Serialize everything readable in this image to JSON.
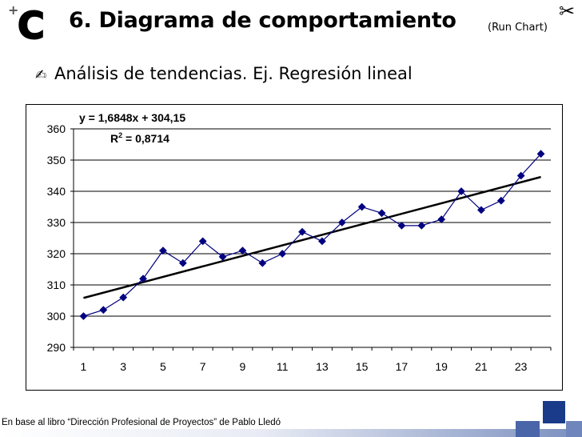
{
  "header": {
    "logo_letter": "C",
    "logo_plus": "+",
    "title": "6. Diagrama de comportamiento",
    "title_suffix": "(Run Chart)",
    "scissors_glyph": "✂"
  },
  "subtitle": {
    "bullet_glyph": "✍",
    "text": "Análisis de tendencias. Ej. Regresión lineal"
  },
  "footer": {
    "text": "En base al libro “Dirección Profesional de Proyectos” de Pablo Lledó"
  },
  "colors": {
    "series": "#000080",
    "trendline": "#000000",
    "accent": "#1a3a8a"
  },
  "chart_data": {
    "type": "line",
    "title": "",
    "xlabel": "",
    "ylabel": "",
    "x": [
      1,
      2,
      3,
      4,
      5,
      6,
      7,
      8,
      9,
      10,
      11,
      12,
      13,
      14,
      15,
      16,
      17,
      18,
      19,
      20,
      21,
      22,
      23,
      24
    ],
    "y": [
      300,
      302,
      306,
      312,
      321,
      317,
      324,
      319,
      321,
      317,
      320,
      327,
      324,
      330,
      335,
      333,
      329,
      329,
      331,
      340,
      334,
      337,
      345,
      352
    ],
    "xlim": [
      0.5,
      24.5
    ],
    "ylim": [
      290,
      360
    ],
    "y_ticks": [
      290,
      300,
      310,
      320,
      330,
      340,
      350,
      360
    ],
    "x_ticks": [
      1,
      3,
      5,
      7,
      9,
      11,
      13,
      15,
      17,
      19,
      21,
      23
    ],
    "gridlines": "horizontal",
    "marker": "diamond",
    "trendline": {
      "slope": 1.6848,
      "intercept": 304.15,
      "equation_label": "y = 1,6848x + 304,15",
      "r2_base": "R",
      "r2_exponent": "2",
      "r2_rest": " = 0,8714"
    }
  }
}
